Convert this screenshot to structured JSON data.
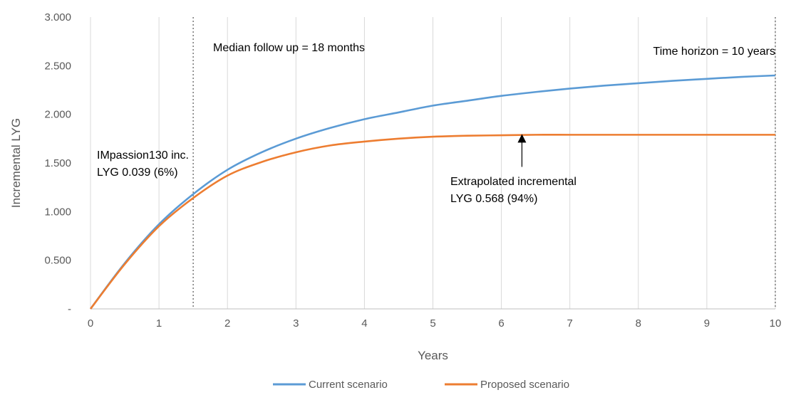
{
  "chart_data": {
    "type": "line",
    "title": "",
    "xlabel": "Years",
    "ylabel": "Incremental LYG",
    "xlim": [
      0,
      10
    ],
    "ylim": [
      0,
      3.0
    ],
    "x_ticks": [
      0,
      1,
      2,
      3,
      4,
      5,
      6,
      7,
      8,
      9,
      10
    ],
    "x_tick_labels": [
      "0",
      "1",
      "2",
      "3",
      "4",
      "5",
      "6",
      "7",
      "8",
      "9",
      "10"
    ],
    "y_ticks": [
      0,
      0.5,
      1.0,
      1.5,
      2.0,
      2.5,
      3.0
    ],
    "y_tick_labels": [
      "-",
      "0.500",
      "1.000",
      "1.500",
      "2.000",
      "2.500",
      "3.000"
    ],
    "grid": "vertical",
    "legend": "bottom",
    "series": [
      {
        "name": "Current scenario",
        "color": "#5b9bd5",
        "x": [
          0,
          0.5,
          1,
          1.5,
          2,
          2.5,
          3,
          3.5,
          4,
          4.5,
          5,
          5.5,
          6,
          6.5,
          7,
          7.5,
          8,
          8.5,
          9,
          9.5,
          10
        ],
        "y": [
          0.0,
          0.47,
          0.87,
          1.18,
          1.43,
          1.61,
          1.75,
          1.86,
          1.95,
          2.02,
          2.09,
          2.14,
          2.19,
          2.23,
          2.265,
          2.295,
          2.32,
          2.345,
          2.365,
          2.385,
          2.4
        ]
      },
      {
        "name": "Proposed scenario",
        "color": "#ed7d31",
        "x": [
          0,
          0.5,
          1,
          1.5,
          2,
          2.5,
          3,
          3.5,
          4,
          4.5,
          5,
          5.5,
          6,
          6.5,
          7,
          7.5,
          8,
          8.5,
          9,
          9.5,
          10
        ],
        "y": [
          0.0,
          0.46,
          0.85,
          1.14,
          1.37,
          1.51,
          1.61,
          1.68,
          1.72,
          1.75,
          1.77,
          1.78,
          1.785,
          1.79,
          1.79,
          1.79,
          1.79,
          1.79,
          1.79,
          1.79,
          1.79
        ]
      }
    ],
    "reference_lines": [
      {
        "x": 1.5,
        "style": "dotted",
        "label": "Median follow up = 18 months"
      },
      {
        "x": 10,
        "style": "dotted",
        "label": "Time horizon = 10 years"
      }
    ],
    "annotations": [
      {
        "lines": [
          "IMpassion130 inc.",
          "LYG 0.039 (6%)"
        ]
      },
      {
        "lines": [
          "Extrapolated incremental",
          "LYG 0.568 (94%)"
        ],
        "arrow_from": [
          6.3,
          1.46
        ],
        "arrow_to": [
          6.3,
          1.79
        ]
      }
    ]
  }
}
